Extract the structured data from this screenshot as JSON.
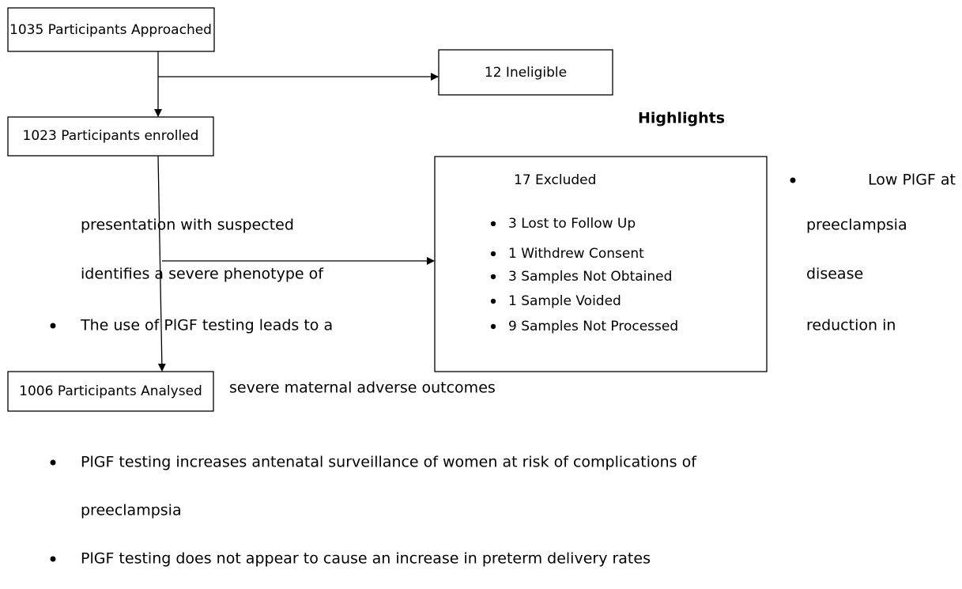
{
  "flowchart": {
    "approached": "1035 Participants Approached",
    "ineligible": "12 Ineligible",
    "enrolled": "1023 Participants enrolled",
    "excluded": {
      "title": "17 Excluded",
      "items": [
        "3 Lost to Follow Up",
        "1 Withdrew Consent",
        "3 Samples Not Obtained",
        "1 Sample Voided",
        "9 Samples Not Processed"
      ]
    },
    "analysed": "1006 Participants Analysed"
  },
  "highlights": {
    "title": "Highlights",
    "fragments": [
      "Low PlGF at",
      "presentation with suspected",
      "preeclampsia",
      "identifies a severe phenotype of",
      "disease",
      "The use of PlGF testing leads to a",
      "reduction in",
      "severe maternal adverse outcomes"
    ],
    "bullets": [
      "PlGF testing increases antenatal surveillance of women at risk of complications of",
      "preeclampsia",
      "PlGF testing does not appear to cause an increase in preterm delivery rates"
    ]
  }
}
